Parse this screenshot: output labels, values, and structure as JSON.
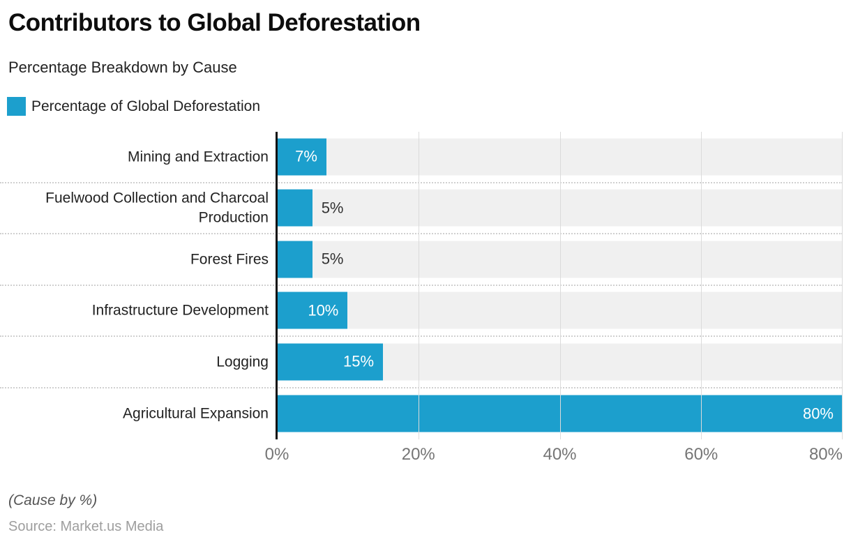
{
  "header": {
    "title": "Contributors to Global Deforestation",
    "subtitle": "Percentage Breakdown by Cause"
  },
  "legend": {
    "label": "Percentage of Global Deforestation",
    "swatch_color": "#1c9fcd"
  },
  "chart_data": {
    "type": "bar",
    "orientation": "horizontal",
    "title": "Contributors to Global Deforestation",
    "subtitle": "Percentage Breakdown by Cause",
    "series_name": "Percentage of Global Deforestation",
    "categories": [
      "Mining and Extraction",
      "Fuelwood Collection and Charcoal Production",
      "Forest Fires",
      "Infrastructure Development",
      "Logging",
      "Agricultural Expansion"
    ],
    "values": [
      7,
      5,
      5,
      10,
      15,
      80
    ],
    "value_labels": [
      "7%",
      "5%",
      "5%",
      "10%",
      "15%",
      "80%"
    ],
    "x_ticks": [
      "0%",
      "20%",
      "40%",
      "60%",
      "80%"
    ],
    "xlim": [
      0,
      80
    ],
    "xlabel": "",
    "ylabel": "",
    "grid": true,
    "legend_position": "top-left",
    "bar_color": "#1c9fcd",
    "track_color": "#f0f0f0",
    "inside_label_color": "#ffffff",
    "outside_label_color": "#333333"
  },
  "footer": {
    "note": "(Cause by %)",
    "source": "Source: Market.us Media"
  }
}
